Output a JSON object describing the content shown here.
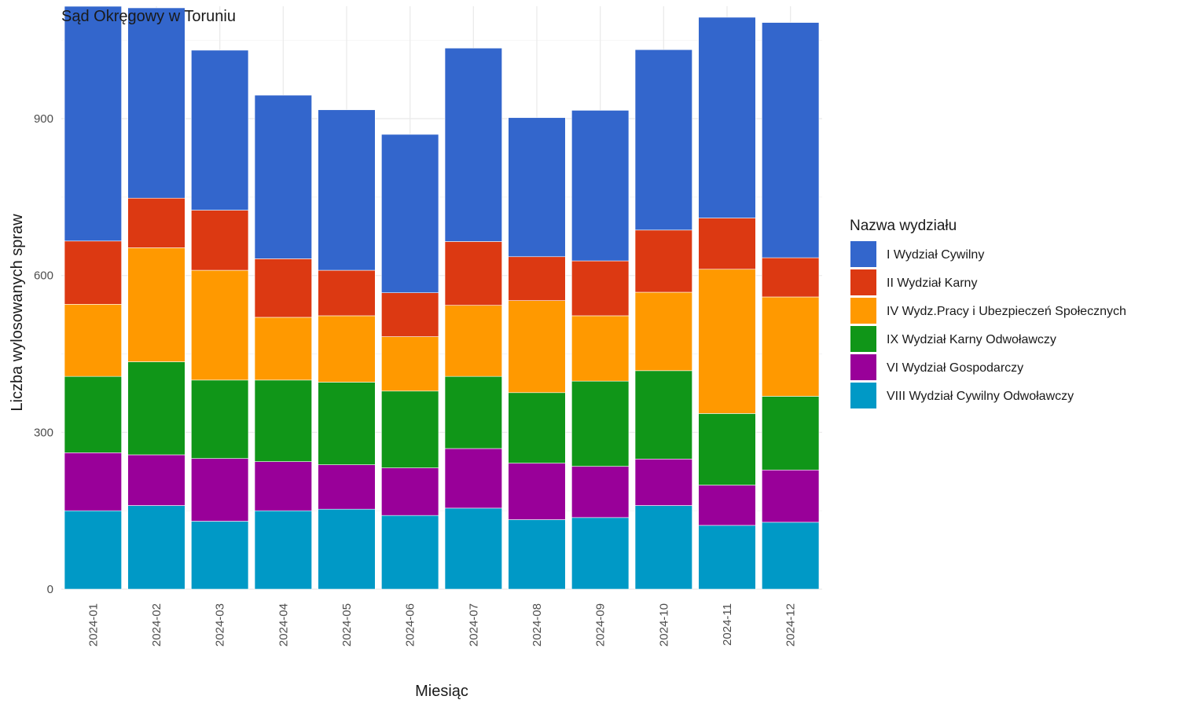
{
  "chart_data": {
    "type": "bar",
    "stacked": true,
    "title": "Sąd Okręgowy w Toruniu",
    "xlabel": "Miesiąc",
    "ylabel": "Liczba wylosowanych spraw",
    "ylim": [
      0,
      1115
    ],
    "yticks": [
      0,
      300,
      600,
      900
    ],
    "grid": true,
    "legend": {
      "title": "Nazwa wydziału",
      "placement": "right"
    },
    "categories": [
      "2024-01",
      "2024-02",
      "2024-03",
      "2024-04",
      "2024-05",
      "2024-06",
      "2024-07",
      "2024-08",
      "2024-09",
      "2024-10",
      "2024-11",
      "2024-12"
    ],
    "series": [
      {
        "name": "VIII Wydział Cywilny Odwoławczy",
        "color": "#0099c6",
        "values": [
          150,
          160,
          130,
          150,
          153,
          141,
          155,
          133,
          137,
          160,
          122,
          128
        ]
      },
      {
        "name": "VI Wydział Gospodarczy",
        "color": "#990099",
        "values": [
          111,
          97,
          120,
          94,
          85,
          91,
          114,
          108,
          98,
          89,
          77,
          100
        ]
      },
      {
        "name": "IX Wydział Karny Odwoławczy",
        "color": "#109618",
        "values": [
          146,
          178,
          150,
          156,
          158,
          147,
          138,
          135,
          163,
          169,
          137,
          141
        ]
      },
      {
        "name": "IV Wydz.Pracy i Ubezpieczeń Społecznych",
        "color": "#ff9900",
        "values": [
          138,
          218,
          210,
          120,
          127,
          104,
          136,
          176,
          125,
          150,
          276,
          190
        ]
      },
      {
        "name": "II Wydział Karny",
        "color": "#dc3912",
        "values": [
          121,
          95,
          115,
          112,
          87,
          84,
          122,
          84,
          105,
          119,
          98,
          75
        ]
      },
      {
        "name": "I Wydział Cywilny",
        "color": "#3366cc",
        "values": [
          449,
          364,
          306,
          313,
          307,
          303,
          370,
          266,
          288,
          345,
          384,
          450
        ]
      }
    ],
    "legend_order": [
      "I Wydział Cywilny",
      "II Wydział Karny",
      "IV Wydz.Pracy i Ubezpieczeń Społecznych",
      "IX Wydział Karny Odwoławczy",
      "VI Wydział Gospodarczy",
      "VIII Wydział Cywilny Odwoławczy"
    ]
  }
}
